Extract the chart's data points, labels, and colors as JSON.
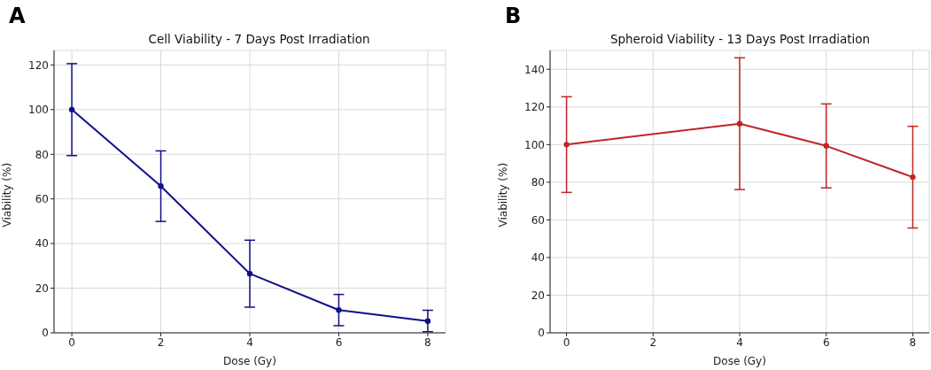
{
  "chart_data": [
    {
      "type": "line",
      "title": "Cell Viability - 7 Days Post Irradiation",
      "xlabel": "Dose (Gy)",
      "ylabel": "Viability (%)",
      "annotations": [
        "A"
      ],
      "x": [
        0,
        2,
        4,
        6,
        8
      ],
      "series": [
        {
          "color": "#10108a",
          "values": [
            100,
            65.7,
            26.5,
            10.2,
            5.3
          ],
          "errors": [
            20.6,
            15.8,
            15,
            7,
            4.8
          ]
        }
      ],
      "xlim": [
        -0.4,
        8.4
      ],
      "xticks": [
        0,
        2,
        4,
        6,
        8
      ],
      "ylim": [
        0,
        126.5
      ],
      "yticks": [
        0,
        20,
        40,
        60,
        80,
        100,
        120
      ],
      "grid": true,
      "marker": "circle",
      "line_style": "solid"
    },
    {
      "type": "line",
      "title": "Spheroid Viability - 13 Days Post Irradiation",
      "xlabel": "Dose (Gy)",
      "ylabel": "Viability (%)",
      "annotations": [
        "B"
      ],
      "x": [
        0,
        4,
        6,
        8
      ],
      "series": [
        {
          "color": "#c02525",
          "values": [
            100,
            111.1,
            99.3,
            82.7
          ],
          "errors": [
            25.4,
            35,
            22.3,
            27
          ]
        }
      ],
      "xlim": [
        -0.38,
        8.38
      ],
      "xticks": [
        0,
        2,
        4,
        6,
        8
      ],
      "ylim": [
        0,
        150
      ],
      "yticks": [
        0,
        20,
        40,
        60,
        80,
        100,
        120,
        140
      ],
      "grid": true,
      "marker": "circle",
      "line_style": "solid"
    }
  ]
}
